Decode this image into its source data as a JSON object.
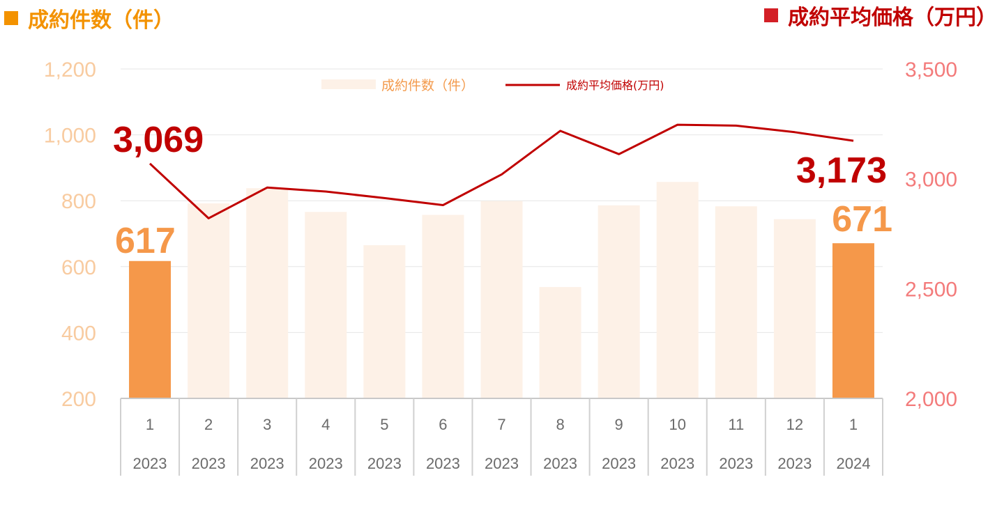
{
  "header": {
    "left_label": "成約件数（件）",
    "right_label": "成約平均価格（万円）",
    "left_color": "#f39200",
    "right_color": "#d31f26"
  },
  "legend": {
    "bar_label": "成約件数（件）",
    "line_label": "成約平均価格(万円)"
  },
  "chart_data": {
    "type": "bar",
    "categories": [
      {
        "month": "1",
        "year": "2023"
      },
      {
        "month": "2",
        "year": "2023"
      },
      {
        "month": "3",
        "year": "2023"
      },
      {
        "month": "4",
        "year": "2023"
      },
      {
        "month": "5",
        "year": "2023"
      },
      {
        "month": "6",
        "year": "2023"
      },
      {
        "month": "7",
        "year": "2023"
      },
      {
        "month": "8",
        "year": "2023"
      },
      {
        "month": "9",
        "year": "2023"
      },
      {
        "month": "10",
        "year": "2023"
      },
      {
        "month": "11",
        "year": "2023"
      },
      {
        "month": "12",
        "year": "2023"
      },
      {
        "month": "1",
        "year": "2024"
      }
    ],
    "series": [
      {
        "name": "成約件数（件）",
        "type": "bar",
        "axis": "left",
        "values": [
          617,
          792,
          838,
          766,
          665,
          757,
          799,
          538,
          786,
          857,
          783,
          744,
          671
        ],
        "highlight_color": "#f5984a",
        "color": "#fdf1e7"
      },
      {
        "name": "成約平均価格(万円)",
        "type": "line",
        "axis": "right",
        "values": [
          3069,
          2820,
          2960,
          2942,
          2912,
          2880,
          3020,
          3218,
          3112,
          3246,
          3242,
          3212,
          3173
        ],
        "color": "#c00000"
      }
    ],
    "y_left": {
      "min": 200,
      "max": 1200,
      "ticks": [
        "200",
        "400",
        "600",
        "800",
        "1,000",
        "1,200"
      ]
    },
    "y_right": {
      "min": 2000,
      "max": 3500,
      "ticks": [
        "2,000",
        "2,500",
        "3,000",
        "3,500"
      ]
    },
    "annotations": {
      "price_start": "3,069",
      "price_end": "3,173",
      "count_start": "617",
      "count_end": "671"
    },
    "grid": true,
    "legend_position": "top-center"
  }
}
